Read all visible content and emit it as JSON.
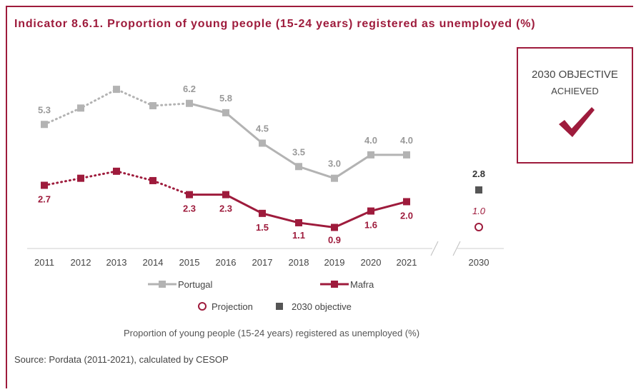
{
  "title": "Indicator 8.6.1. Proportion of young people (15-24 years) registered as unemployed (%)",
  "objective_box": {
    "line1": "2030 OBJECTIVE",
    "line2": "ACHIEVED",
    "icon": "checkmark-icon",
    "color": "#9e1b3c"
  },
  "subtitle": "Proportion of young people (15-24 years) registered as unemployed (%)",
  "source": "Source: Pordata (2011-2021), calculated by CESOP",
  "colors": {
    "accent": "#9e1b3c",
    "portugal": "#b3b3b3",
    "objective": "#555555"
  },
  "chart_data": {
    "type": "line",
    "categories": [
      "2011",
      "2012",
      "2013",
      "2014",
      "2015",
      "2016",
      "2017",
      "2018",
      "2019",
      "2020",
      "2021",
      "2030"
    ],
    "series": [
      {
        "name": "Portugal",
        "x": [
          "2011",
          "2012",
          "2013",
          "2014",
          "2015",
          "2016",
          "2017",
          "2018",
          "2019",
          "2020",
          "2021"
        ],
        "values": [
          5.3,
          6.0,
          6.8,
          6.1,
          6.2,
          5.8,
          4.5,
          3.5,
          3.0,
          4.0,
          4.0
        ],
        "labels": [
          "5.3",
          "",
          "",
          "",
          "6.2",
          "5.8",
          "4.5",
          "3.5",
          "3.0",
          "4.0",
          "4.0"
        ],
        "dotted_until": "2015",
        "color": "#b3b3b3",
        "marker": "square"
      },
      {
        "name": "Mafra",
        "x": [
          "2011",
          "2012",
          "2013",
          "2014",
          "2015",
          "2016",
          "2017",
          "2018",
          "2019",
          "2020",
          "2021"
        ],
        "values": [
          2.7,
          3.0,
          3.3,
          2.9,
          2.3,
          2.3,
          1.5,
          1.1,
          0.9,
          1.6,
          2.0
        ],
        "labels": [
          "2.7",
          "",
          "",
          "",
          "2.3",
          "2.3",
          "1.5",
          "1.1",
          "0.9",
          "1.6",
          "2.0"
        ],
        "dotted_until": "2015",
        "color": "#9e1b3c",
        "marker": "square"
      }
    ],
    "points": [
      {
        "name": "Projection",
        "x": "2030",
        "value": 1.0,
        "label": "1.0",
        "marker": "open-circle",
        "color": "#9e1b3c"
      },
      {
        "name": "2030 objective",
        "x": "2030",
        "value": 2.8,
        "label": "2.8",
        "marker": "square",
        "color": "#555555"
      }
    ],
    "legend": [
      "Portugal",
      "Mafra",
      "Projection",
      "2030 objective"
    ],
    "legend_position": "bottom",
    "grid": false,
    "ylim": [
      0,
      7.2
    ],
    "axis_break": "between 2021 and 2030"
  }
}
